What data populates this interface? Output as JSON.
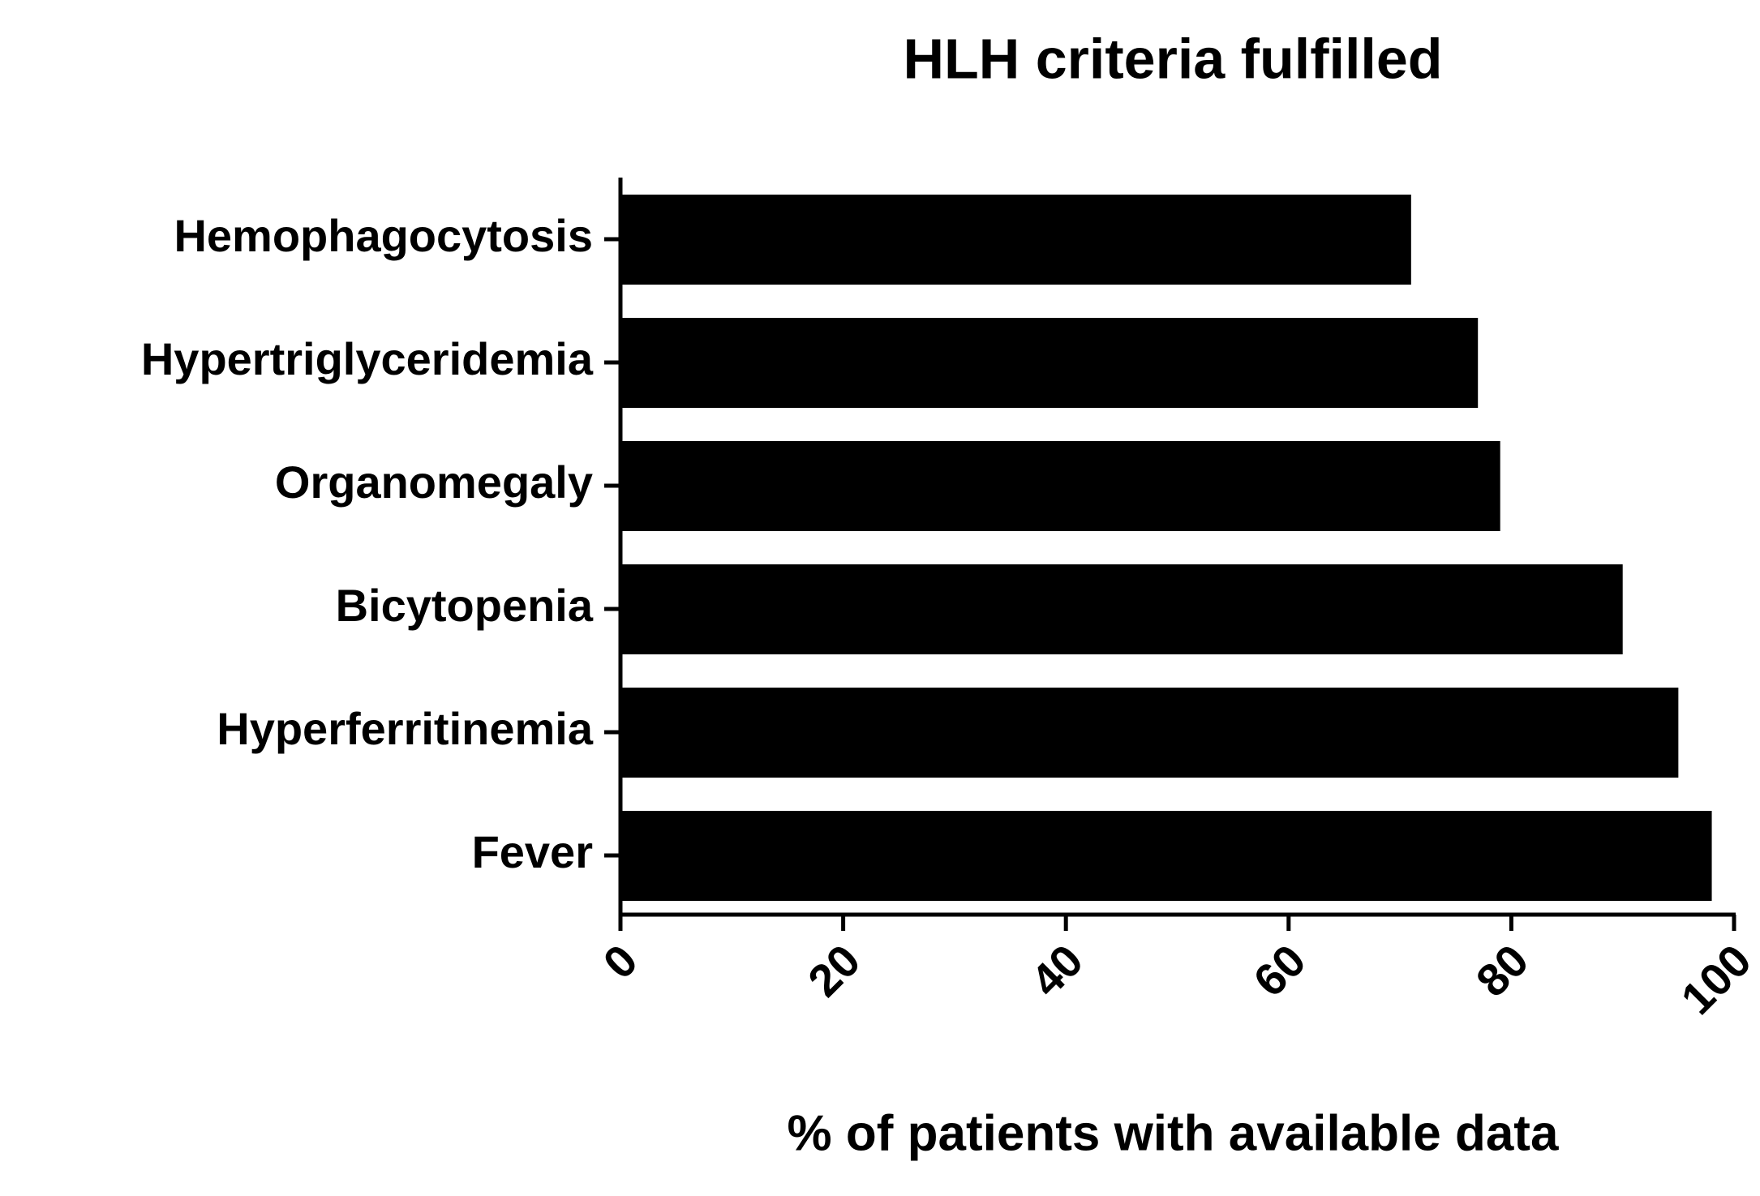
{
  "chart_data": {
    "type": "bar",
    "orientation": "horizontal",
    "title": "HLH criteria fulfilled",
    "x_label": "% of patients with available data",
    "categories": [
      "Hemophagocytosis",
      "Hypertriglyceridemia",
      "Organomegaly",
      "Bicytopenia",
      "Hyperferritinemia",
      "Fever"
    ],
    "values": [
      71,
      77,
      79,
      90,
      95,
      98
    ],
    "color": "#000000",
    "xlim": [
      0,
      100
    ],
    "xticks": [
      0,
      20,
      40,
      60,
      80,
      100
    ],
    "grid": false
  }
}
